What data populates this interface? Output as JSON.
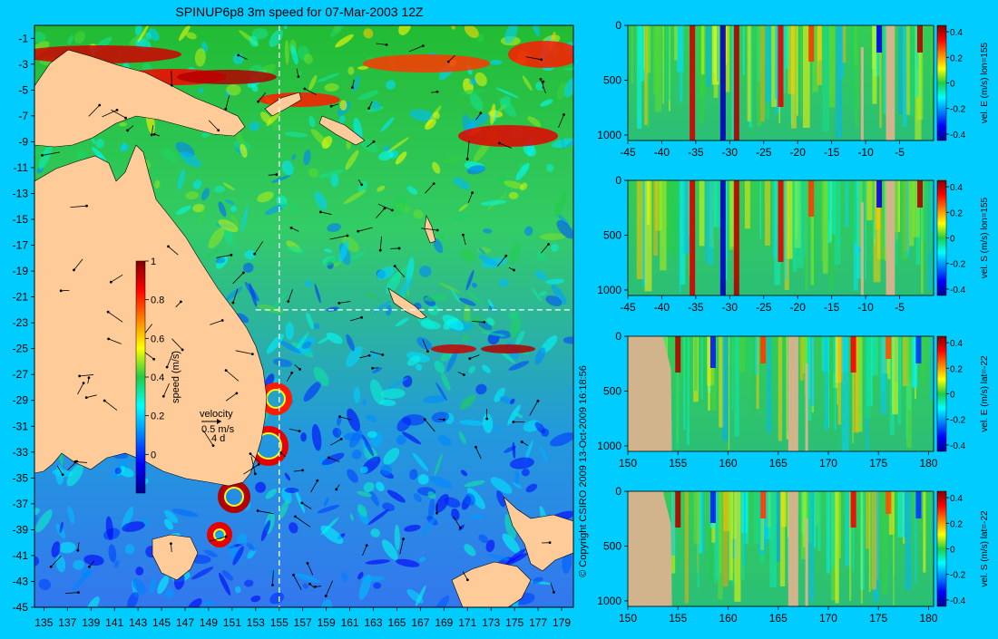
{
  "title": "SPINUP6p8 3m speed for 07-Mar-2003 12Z",
  "copyright": "© Copyright CSIRO 2009   13-Oct-2009 16:18:56",
  "colors": {
    "background": "#00ccff",
    "land": "#ffcc99",
    "panel_land": "#d2b48c",
    "section_line": "#ffffff"
  },
  "map": {
    "lon_ticks": [
      "135",
      "137",
      "139",
      "141",
      "143",
      "145",
      "147",
      "149",
      "151",
      "153",
      "155",
      "157",
      "159",
      "161",
      "163",
      "165",
      "167",
      "169",
      "171",
      "173",
      "175",
      "177",
      "179"
    ],
    "lat_ticks": [
      "-1",
      "-3",
      "-5",
      "-7",
      "-9",
      "-11",
      "-13",
      "-15",
      "-17",
      "-19",
      "-21",
      "-23",
      "-25",
      "-27",
      "-29",
      "-31",
      "-33",
      "-35",
      "-37",
      "-39",
      "-41",
      "-43",
      "-45"
    ],
    "section_lon": 155,
    "section_lat": -22,
    "colorbar": {
      "label": "speed (m/s)",
      "ticks": [
        "1",
        "0.8",
        "0.6",
        "0.4",
        "0.2",
        "0"
      ],
      "range": [
        -0.2,
        1.0
      ]
    },
    "velocity_key": {
      "title": "velocity",
      "speed": "0.5 m/s",
      "duration": "4 d"
    }
  },
  "panels": [
    {
      "label": "vel. E (m/s) lon=155",
      "x_ticks": [
        "-45",
        "-40",
        "-35",
        "-30",
        "-25",
        "-20",
        "-15",
        "-10",
        "-5"
      ],
      "x_range": [
        -45,
        0
      ],
      "y_ticks": [
        "0",
        "500",
        "1000"
      ],
      "y_range": [
        0,
        1050
      ],
      "cb_ticks": [
        "0.4",
        "0.2",
        "0",
        "-0.2",
        "-0.4"
      ],
      "cb_range": [
        -0.45,
        0.45
      ]
    },
    {
      "label": "vel. S (m/s) lon=155",
      "x_ticks": [
        "-45",
        "-40",
        "-35",
        "-30",
        "-25",
        "-20",
        "-15",
        "-10",
        "-5"
      ],
      "x_range": [
        -45,
        0
      ],
      "y_ticks": [
        "0",
        "500",
        "1000"
      ],
      "y_range": [
        0,
        1050
      ],
      "cb_ticks": [
        "0.4",
        "0.2",
        "0",
        "-0.2",
        "-0.4"
      ],
      "cb_range": [
        -0.45,
        0.45
      ]
    },
    {
      "label": "vel. E (m/s) lat=-22",
      "x_ticks": [
        "150",
        "155",
        "160",
        "165",
        "170",
        "175",
        "180"
      ],
      "x_range": [
        150,
        180.5
      ],
      "y_ticks": [
        "0",
        "500",
        "1000"
      ],
      "y_range": [
        0,
        1050
      ],
      "cb_ticks": [
        "0.4",
        "0.2",
        "0",
        "-0.2",
        "-0.4"
      ],
      "cb_range": [
        -0.45,
        0.45
      ]
    },
    {
      "label": "vel. S (m/s) lat=-22",
      "x_ticks": [
        "150",
        "155",
        "160",
        "165",
        "170",
        "175",
        "180"
      ],
      "x_range": [
        150,
        180.5
      ],
      "y_ticks": [
        "0",
        "500",
        "1000"
      ],
      "y_range": [
        0,
        1050
      ],
      "cb_ticks": [
        "0.4",
        "0.2",
        "0",
        "-0.2",
        "-0.4"
      ],
      "cb_range": [
        -0.45,
        0.45
      ]
    }
  ]
}
